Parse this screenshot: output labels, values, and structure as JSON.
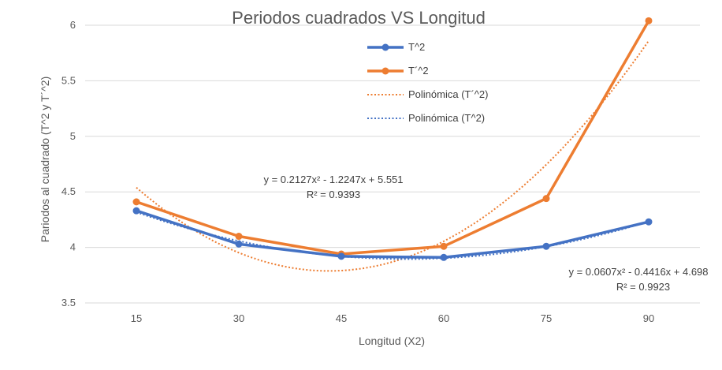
{
  "chart_data": {
    "type": "line",
    "title": "Periodos cuadrados VS Longitud",
    "xlabel": "Longitud (X2)",
    "ylabel": "Pariodos al cuadrado (T^2 y T´^2)",
    "categories": [
      15,
      30,
      45,
      60,
      75,
      90
    ],
    "ylim": [
      3.5,
      6
    ],
    "yticks": [
      "3.5",
      "4",
      "4.5",
      "5",
      "5.5",
      "6"
    ],
    "grid": true,
    "legend_position": "top-center",
    "series": [
      {
        "name": "T^2",
        "color": "#4472C4",
        "values": [
          4.33,
          4.03,
          3.92,
          3.91,
          4.01,
          4.23
        ]
      },
      {
        "name": "T´^2",
        "color": "#ED7D31",
        "values": [
          4.41,
          4.1,
          3.94,
          4.01,
          4.44,
          6.04
        ]
      }
    ],
    "trendlines": [
      {
        "name": "Polinómica (T´^2)",
        "color": "#ED7D31",
        "type": "polynomial",
        "coefficients": [
          0.2127,
          -1.2247,
          5.551
        ],
        "equation": "y = 0.2127x² - 1.2247x + 5.551",
        "r2": "R² = 0.9393"
      },
      {
        "name": "Polinómica (T^2)",
        "color": "#4472C4",
        "type": "polynomial",
        "coefficients": [
          0.0607,
          -0.4416,
          4.698
        ],
        "equation": "y = 0.0607x² - 0.4416x + 4.698",
        "r2": "R² = 0.9923"
      }
    ]
  }
}
